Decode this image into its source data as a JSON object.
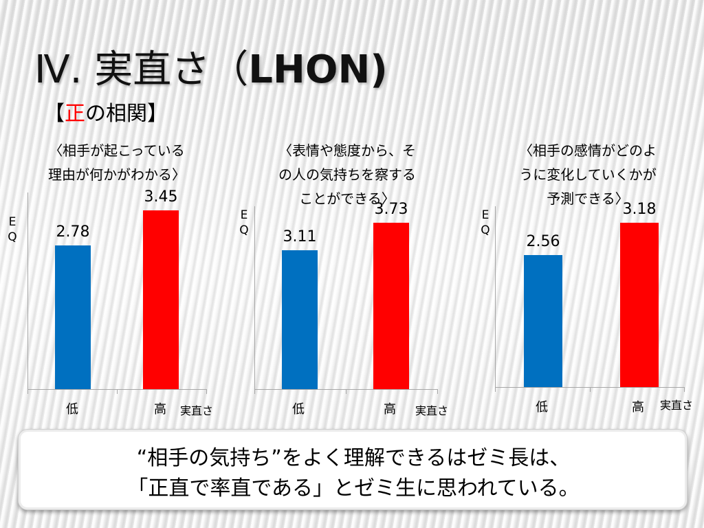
{
  "slide": {
    "title_prefix": "Ⅳ. 実直さ（",
    "title_latin": "LHON)",
    "subtitle_open": "【",
    "subtitle_accent": "正",
    "subtitle_rest": "の相関】",
    "accent_color": "#ff0000"
  },
  "chart_data": [
    {
      "type": "bar",
      "title": "〈相手が起こっている\n理由が何かがわかる〉",
      "categories": [
        "低",
        "高"
      ],
      "values": [
        2.78,
        3.45
      ],
      "colors": [
        "#0070c0",
        "#ff0000"
      ],
      "ylabel": "E\nQ",
      "xlabel": "実直さ",
      "ylim": [
        0,
        3.8
      ],
      "grid": false
    },
    {
      "type": "bar",
      "title": "〈表情や態度から、そ\nの人の気持ちを察する\nことができる〉",
      "categories": [
        "低",
        "高"
      ],
      "values": [
        3.11,
        3.73
      ],
      "colors": [
        "#0070c0",
        "#ff0000"
      ],
      "ylabel": "E\nQ",
      "xlabel": "実直さ",
      "ylim": [
        0,
        4.1
      ],
      "grid": false
    },
    {
      "type": "bar",
      "title": "〈相手の感情がどのよ\nうに変化していくかが\n予測できる〉",
      "categories": [
        "低",
        "高"
      ],
      "values": [
        2.56,
        3.18
      ],
      "colors": [
        "#0070c0",
        "#ff0000"
      ],
      "ylabel": "E\nQ",
      "xlabel": "実直さ",
      "ylim": [
        0,
        3.5
      ],
      "grid": false
    }
  ],
  "callout": {
    "line1": "“相手の気持ち”をよく理解できるはゼミ長は、",
    "line2": "「正直で率直である」とゼミ生に思われている。"
  }
}
